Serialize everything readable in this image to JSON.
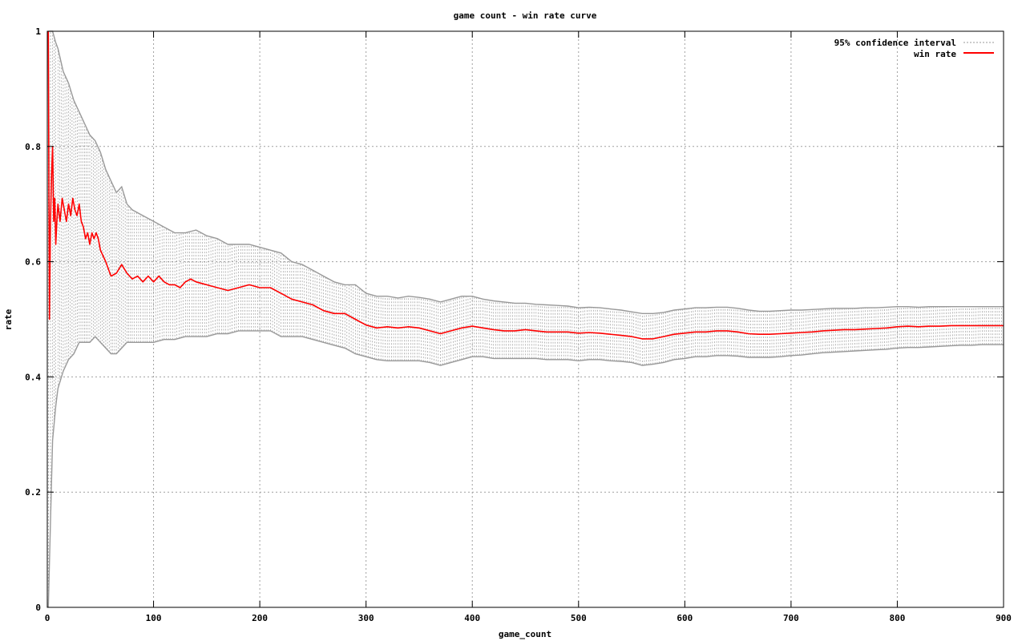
{
  "chart_data": {
    "type": "line",
    "title": "game count - win rate curve",
    "xlabel": "game_count",
    "ylabel": "rate",
    "xlim": [
      0,
      900
    ],
    "ylim": [
      0,
      1
    ],
    "grid": true,
    "legend_position": "top-right",
    "x_ticks": [
      "0",
      "100",
      "200",
      "300",
      "400",
      "500",
      "600",
      "700",
      "800",
      "900"
    ],
    "y_ticks": [
      "0",
      "0.2",
      "0.4",
      "0.6",
      "0.8",
      "1"
    ],
    "series": [
      {
        "name": "win rate",
        "color": "#ff0000",
        "points": [
          [
            1,
            1.0
          ],
          [
            2,
            0.5
          ],
          [
            3,
            0.67
          ],
          [
            4,
            0.75
          ],
          [
            5,
            0.8
          ],
          [
            6,
            0.67
          ],
          [
            7,
            0.71
          ],
          [
            8,
            0.63
          ],
          [
            9,
            0.67
          ],
          [
            10,
            0.7
          ],
          [
            12,
            0.67
          ],
          [
            14,
            0.71
          ],
          [
            16,
            0.69
          ],
          [
            18,
            0.67
          ],
          [
            20,
            0.7
          ],
          [
            22,
            0.68
          ],
          [
            24,
            0.71
          ],
          [
            26,
            0.69
          ],
          [
            28,
            0.68
          ],
          [
            30,
            0.7
          ],
          [
            32,
            0.67
          ],
          [
            34,
            0.66
          ],
          [
            36,
            0.64
          ],
          [
            38,
            0.65
          ],
          [
            40,
            0.63
          ],
          [
            42,
            0.65
          ],
          [
            44,
            0.64
          ],
          [
            46,
            0.65
          ],
          [
            48,
            0.64
          ],
          [
            50,
            0.62
          ],
          [
            55,
            0.6
          ],
          [
            60,
            0.575
          ],
          [
            65,
            0.58
          ],
          [
            70,
            0.595
          ],
          [
            75,
            0.58
          ],
          [
            80,
            0.57
          ],
          [
            85,
            0.575
          ],
          [
            90,
            0.565
          ],
          [
            95,
            0.575
          ],
          [
            100,
            0.565
          ],
          [
            105,
            0.575
          ],
          [
            110,
            0.565
          ],
          [
            115,
            0.56
          ],
          [
            120,
            0.56
          ],
          [
            125,
            0.555
          ],
          [
            130,
            0.565
          ],
          [
            135,
            0.57
          ],
          [
            140,
            0.565
          ],
          [
            150,
            0.56
          ],
          [
            160,
            0.555
          ],
          [
            170,
            0.55
          ],
          [
            180,
            0.555
          ],
          [
            190,
            0.56
          ],
          [
            200,
            0.555
          ],
          [
            210,
            0.555
          ],
          [
            220,
            0.545
          ],
          [
            230,
            0.535
          ],
          [
            240,
            0.53
          ],
          [
            250,
            0.525
          ],
          [
            260,
            0.515
          ],
          [
            270,
            0.51
          ],
          [
            280,
            0.51
          ],
          [
            290,
            0.5
          ],
          [
            300,
            0.49
          ],
          [
            310,
            0.485
          ],
          [
            320,
            0.487
          ],
          [
            330,
            0.485
          ],
          [
            340,
            0.487
          ],
          [
            350,
            0.485
          ],
          [
            360,
            0.48
          ],
          [
            370,
            0.475
          ],
          [
            380,
            0.48
          ],
          [
            390,
            0.485
          ],
          [
            400,
            0.488
          ],
          [
            410,
            0.485
          ],
          [
            420,
            0.482
          ],
          [
            430,
            0.48
          ],
          [
            440,
            0.48
          ],
          [
            450,
            0.482
          ],
          [
            460,
            0.48
          ],
          [
            470,
            0.478
          ],
          [
            480,
            0.478
          ],
          [
            490,
            0.478
          ],
          [
            500,
            0.476
          ],
          [
            510,
            0.477
          ],
          [
            520,
            0.476
          ],
          [
            530,
            0.474
          ],
          [
            540,
            0.472
          ],
          [
            550,
            0.47
          ],
          [
            560,
            0.466
          ],
          [
            570,
            0.466
          ],
          [
            580,
            0.47
          ],
          [
            590,
            0.474
          ],
          [
            600,
            0.476
          ],
          [
            610,
            0.478
          ],
          [
            620,
            0.478
          ],
          [
            630,
            0.48
          ],
          [
            640,
            0.48
          ],
          [
            650,
            0.478
          ],
          [
            660,
            0.475
          ],
          [
            670,
            0.474
          ],
          [
            680,
            0.474
          ],
          [
            690,
            0.475
          ],
          [
            700,
            0.476
          ],
          [
            710,
            0.477
          ],
          [
            720,
            0.478
          ],
          [
            730,
            0.48
          ],
          [
            740,
            0.481
          ],
          [
            750,
            0.482
          ],
          [
            760,
            0.482
          ],
          [
            770,
            0.483
          ],
          [
            780,
            0.484
          ],
          [
            790,
            0.485
          ],
          [
            800,
            0.487
          ],
          [
            810,
            0.488
          ],
          [
            820,
            0.487
          ],
          [
            830,
            0.488
          ],
          [
            840,
            0.488
          ],
          [
            850,
            0.489
          ],
          [
            860,
            0.489
          ],
          [
            870,
            0.489
          ],
          [
            880,
            0.489
          ],
          [
            890,
            0.489
          ],
          [
            900,
            0.489
          ]
        ]
      },
      {
        "name": "95% confidence interval",
        "color": "#999999",
        "band": [
          [
            1,
            0.0,
            1.0
          ],
          [
            3,
            0.15,
            1.0
          ],
          [
            5,
            0.29,
            1.0
          ],
          [
            8,
            0.35,
            0.98
          ],
          [
            10,
            0.38,
            0.97
          ],
          [
            15,
            0.41,
            0.93
          ],
          [
            20,
            0.43,
            0.91
          ],
          [
            25,
            0.44,
            0.88
          ],
          [
            30,
            0.46,
            0.86
          ],
          [
            35,
            0.46,
            0.84
          ],
          [
            40,
            0.46,
            0.82
          ],
          [
            45,
            0.47,
            0.81
          ],
          [
            50,
            0.46,
            0.79
          ],
          [
            55,
            0.45,
            0.76
          ],
          [
            60,
            0.44,
            0.74
          ],
          [
            65,
            0.44,
            0.72
          ],
          [
            70,
            0.45,
            0.73
          ],
          [
            75,
            0.46,
            0.7
          ],
          [
            80,
            0.46,
            0.69
          ],
          [
            90,
            0.46,
            0.68
          ],
          [
            100,
            0.46,
            0.67
          ],
          [
            110,
            0.465,
            0.66
          ],
          [
            120,
            0.465,
            0.65
          ],
          [
            130,
            0.47,
            0.65
          ],
          [
            140,
            0.47,
            0.655
          ],
          [
            150,
            0.47,
            0.645
          ],
          [
            160,
            0.475,
            0.64
          ],
          [
            170,
            0.475,
            0.63
          ],
          [
            180,
            0.48,
            0.63
          ],
          [
            190,
            0.48,
            0.63
          ],
          [
            200,
            0.48,
            0.625
          ],
          [
            210,
            0.48,
            0.62
          ],
          [
            220,
            0.47,
            0.615
          ],
          [
            230,
            0.47,
            0.6
          ],
          [
            240,
            0.47,
            0.595
          ],
          [
            250,
            0.465,
            0.585
          ],
          [
            260,
            0.46,
            0.575
          ],
          [
            270,
            0.455,
            0.565
          ],
          [
            280,
            0.45,
            0.56
          ],
          [
            290,
            0.44,
            0.56
          ],
          [
            300,
            0.435,
            0.545
          ],
          [
            310,
            0.43,
            0.54
          ],
          [
            320,
            0.428,
            0.54
          ],
          [
            330,
            0.428,
            0.537
          ],
          [
            340,
            0.428,
            0.54
          ],
          [
            350,
            0.428,
            0.538
          ],
          [
            360,
            0.425,
            0.535
          ],
          [
            370,
            0.42,
            0.53
          ],
          [
            380,
            0.425,
            0.535
          ],
          [
            390,
            0.43,
            0.54
          ],
          [
            400,
            0.435,
            0.54
          ],
          [
            410,
            0.435,
            0.535
          ],
          [
            420,
            0.432,
            0.532
          ],
          [
            430,
            0.432,
            0.53
          ],
          [
            440,
            0.432,
            0.528
          ],
          [
            450,
            0.432,
            0.528
          ],
          [
            460,
            0.432,
            0.526
          ],
          [
            470,
            0.43,
            0.525
          ],
          [
            480,
            0.43,
            0.524
          ],
          [
            490,
            0.43,
            0.523
          ],
          [
            500,
            0.428,
            0.52
          ],
          [
            510,
            0.43,
            0.521
          ],
          [
            520,
            0.43,
            0.52
          ],
          [
            530,
            0.428,
            0.518
          ],
          [
            540,
            0.427,
            0.516
          ],
          [
            550,
            0.425,
            0.513
          ],
          [
            560,
            0.42,
            0.51
          ],
          [
            570,
            0.422,
            0.51
          ],
          [
            580,
            0.425,
            0.512
          ],
          [
            590,
            0.43,
            0.516
          ],
          [
            600,
            0.432,
            0.518
          ],
          [
            610,
            0.435,
            0.52
          ],
          [
            620,
            0.435,
            0.52
          ],
          [
            630,
            0.437,
            0.521
          ],
          [
            640,
            0.437,
            0.521
          ],
          [
            650,
            0.436,
            0.519
          ],
          [
            660,
            0.434,
            0.516
          ],
          [
            670,
            0.434,
            0.514
          ],
          [
            680,
            0.434,
            0.514
          ],
          [
            690,
            0.435,
            0.515
          ],
          [
            700,
            0.437,
            0.516
          ],
          [
            710,
            0.438,
            0.516
          ],
          [
            720,
            0.44,
            0.517
          ],
          [
            730,
            0.442,
            0.518
          ],
          [
            740,
            0.443,
            0.519
          ],
          [
            750,
            0.444,
            0.519
          ],
          [
            760,
            0.445,
            0.519
          ],
          [
            770,
            0.446,
            0.52
          ],
          [
            780,
            0.447,
            0.52
          ],
          [
            790,
            0.448,
            0.521
          ],
          [
            800,
            0.45,
            0.522
          ],
          [
            810,
            0.451,
            0.522
          ],
          [
            820,
            0.451,
            0.521
          ],
          [
            830,
            0.452,
            0.522
          ],
          [
            840,
            0.453,
            0.522
          ],
          [
            850,
            0.454,
            0.522
          ],
          [
            860,
            0.455,
            0.522
          ],
          [
            870,
            0.455,
            0.522
          ],
          [
            880,
            0.456,
            0.522
          ],
          [
            890,
            0.456,
            0.522
          ],
          [
            900,
            0.456,
            0.522
          ]
        ]
      }
    ]
  }
}
